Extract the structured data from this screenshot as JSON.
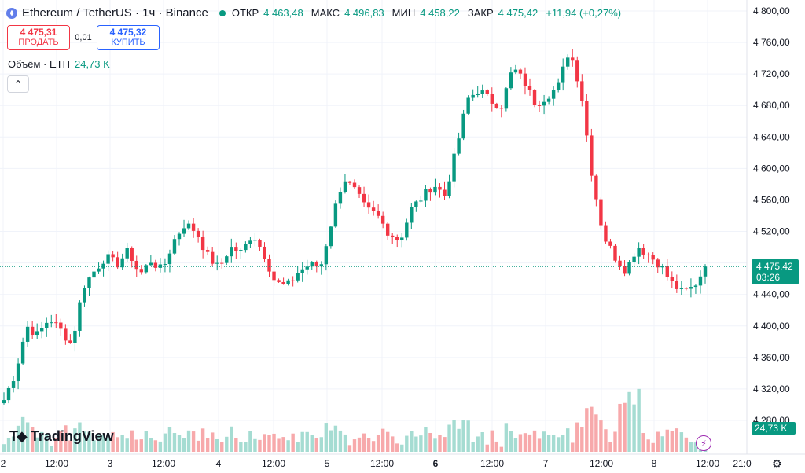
{
  "header": {
    "symbol": "Ethereum / TetherUS · 1ч · Binance",
    "open_label": "ОТКР",
    "open": "4 463,48",
    "high_label": "МАКС",
    "high": "4 496,83",
    "low_label": "МИН",
    "low": "4 458,22",
    "close_label": "ЗАКР",
    "close": "4 475,42",
    "change": "+11,94 (+0,27%)"
  },
  "trade": {
    "sell_price": "4 475,31",
    "sell_label": "ПРОДАТЬ",
    "spread": "0,01",
    "buy_price": "4 475,32",
    "buy_label": "КУПИТЬ"
  },
  "volume_legend": {
    "label": "Объём · ETH",
    "value": "24,73 K"
  },
  "logo_text": "TradingView",
  "price_tag": {
    "price": "4 475,42",
    "countdown": "03:26"
  },
  "volume_tag": "24,73 K",
  "colors": {
    "up": "#089981",
    "down": "#f23645",
    "up_vol": "#a5dcd2",
    "down_vol": "#f7a9ab"
  },
  "icons": {
    "coin": "ethereum-coin-icon",
    "collapse": "chevron-up-icon",
    "flash": "lightning-icon",
    "settings": "gear-icon"
  },
  "chart_data": {
    "type": "candlestick",
    "interval": "1h",
    "ylim": [
      4280,
      4800
    ],
    "y_ticks": [
      "4 800,00",
      "4 760,00",
      "4 720,00",
      "4 680,00",
      "4 640,00",
      "4 600,00",
      "4 560,00",
      "4 520,00",
      "4 480,00",
      "4 440,00",
      "4 400,00",
      "4 360,00",
      "4 320,00",
      "4 280,00"
    ],
    "x_ticks": [
      "2",
      "12:00",
      "3",
      "12:00",
      "4",
      "12:00",
      "5",
      "12:00",
      "6",
      "12:00",
      "7",
      "12:00",
      "8",
      "12:00",
      "21:0"
    ],
    "last_price": 4475.42,
    "anchors": [
      4306,
      4340,
      4400,
      4388,
      4410,
      4395,
      4376,
      4450,
      4470,
      4488,
      4478,
      4496,
      4465,
      4483,
      4470,
      4508,
      4530,
      4520,
      4489,
      4473,
      4500,
      4493,
      4518,
      4491,
      4455,
      4450,
      4468,
      4478,
      4475,
      4535,
      4588,
      4572,
      4548,
      4540,
      4519,
      4508,
      4548,
      4564,
      4580,
      4565,
      4625,
      4688,
      4700,
      4686,
      4680,
      4728,
      4710,
      4682,
      4692,
      4705,
      4752,
      4700,
      4590,
      4515,
      4488,
      4470,
      4502,
      4490,
      4478,
      4455,
      4442,
      4450,
      4475
    ],
    "volume_ylim": [
      0,
      600
    ]
  }
}
